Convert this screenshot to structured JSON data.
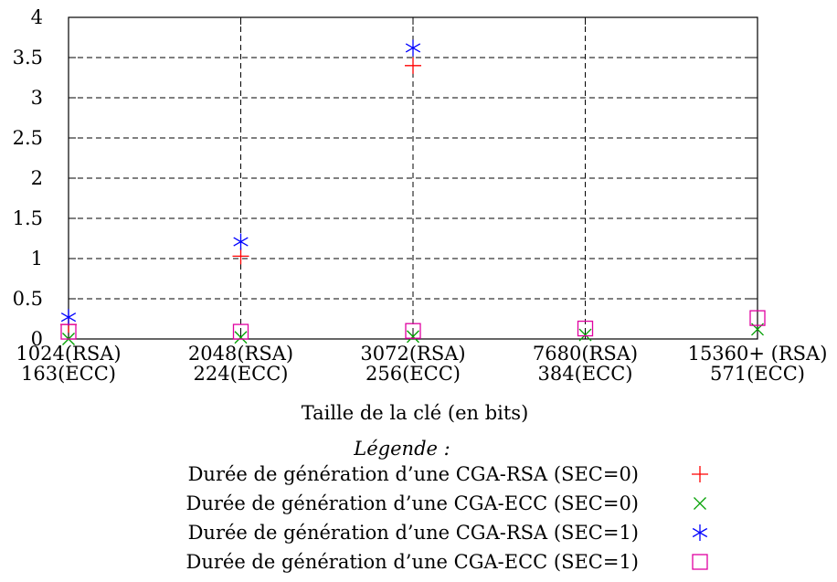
{
  "chart_data": {
    "type": "scatter",
    "title": "",
    "xlabel": "Taille de la clé (en bits)",
    "ylabel": "",
    "ylim": [
      0,
      4
    ],
    "grid": true,
    "categories": [
      [
        "1024(RSA)",
        "163(ECC)"
      ],
      [
        "2048(RSA)",
        "224(ECC)"
      ],
      [
        "3072(RSA)",
        "256(ECC)"
      ],
      [
        "7680(RSA)",
        "384(ECC)"
      ],
      [
        "15360+ (RSA)",
        "571(ECC)"
      ]
    ],
    "yticks": [
      "0",
      "0.5",
      "1",
      "1.5",
      "2",
      "2.5",
      "3",
      "3.5",
      "4"
    ],
    "legend_title": "Légende :",
    "legend_position": "bottom",
    "series": [
      {
        "name": "Durée de génération d’une CGA-RSA (SEC=0)",
        "marker": "plus",
        "color": "#ff0000",
        "points": [
          {
            "x": 0,
            "y": 0.18
          },
          {
            "x": 1,
            "y": 1.03
          },
          {
            "x": 2,
            "y": 3.4
          }
        ]
      },
      {
        "name": "Durée de génération d’une CGA-ECC (SEC=0)",
        "marker": "cross",
        "color": "#00a000",
        "points": [
          {
            "x": 0,
            "y": 0.0
          },
          {
            "x": 1,
            "y": 0.02
          },
          {
            "x": 2,
            "y": 0.03
          },
          {
            "x": 3,
            "y": 0.05
          },
          {
            "x": 4,
            "y": 0.12
          }
        ]
      },
      {
        "name": "Durée de génération d’une CGA-RSA (SEC=1)",
        "marker": "star",
        "color": "#0000ff",
        "points": [
          {
            "x": 0,
            "y": 0.27
          },
          {
            "x": 1,
            "y": 1.21
          },
          {
            "x": 2,
            "y": 3.62
          }
        ]
      },
      {
        "name": "Durée de génération d’une CGA-ECC (SEC=1)",
        "marker": "square",
        "color": "#e000a0",
        "points": [
          {
            "x": 0,
            "y": 0.09
          },
          {
            "x": 1,
            "y": 0.09
          },
          {
            "x": 2,
            "y": 0.1
          },
          {
            "x": 3,
            "y": 0.13
          },
          {
            "x": 4,
            "y": 0.26
          }
        ]
      }
    ]
  }
}
